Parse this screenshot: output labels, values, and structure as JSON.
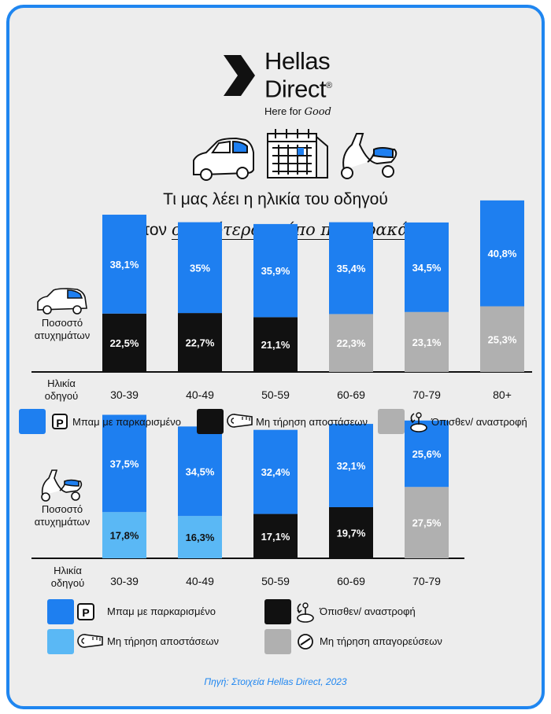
{
  "logo": {
    "line1": "Hellas",
    "line2": "Direct",
    "reg": "®",
    "tagline_plain": "Here for ",
    "tagline_script": "Good"
  },
  "title": {
    "line1": "Τι μας λέει η ηλικία του οδηγού",
    "line2_plain": "για τον ",
    "line2_script": "συχνότερο τρόπο που τρακάρει"
  },
  "colors": {
    "blue": "#1e7ff0",
    "light_blue": "#5ab8f5",
    "black": "#111111",
    "gray": "#b0b0b0",
    "accent": "#1f86f0"
  },
  "chart_data": [
    {
      "type": "bar",
      "vehicle": "car-icon",
      "ylabel": "Ποσοστό ατυχημάτων",
      "xlabel": "Ηλικία οδηγού",
      "categories": [
        "30-39",
        "40-49",
        "50-59",
        "60-69",
        "70-79",
        "80+"
      ],
      "series": [
        {
          "name": "Μπαμ με παρκαρισμένο",
          "color": "#1e7ff0",
          "values": [
            38.1,
            35,
            35.9,
            35.4,
            34.5,
            40.8
          ],
          "labels": [
            "38,1%",
            "35%",
            "35,9%",
            "35,4%",
            "34,5%",
            "40,8%"
          ],
          "position": "top"
        },
        {
          "name": "Μη τήρηση αποστάσεων",
          "color": "#111111",
          "values": [
            22.5,
            22.7,
            21.1,
            null,
            null,
            null
          ],
          "labels": [
            "22,5%",
            "22,7%",
            "21,1%",
            "",
            "",
            ""
          ],
          "position": "bottom"
        },
        {
          "name": "Όπισθεν/ αναστροφή",
          "color": "#b0b0b0",
          "values": [
            null,
            null,
            null,
            22.3,
            23.1,
            25.3
          ],
          "labels": [
            "",
            "",
            "",
            "22,3%",
            "23,1%",
            "25,3%"
          ],
          "position": "bottom"
        }
      ]
    },
    {
      "type": "bar",
      "vehicle": "scooter-icon",
      "ylabel": "Ποσοστό ατυχημάτων",
      "xlabel": "Ηλικία οδηγού",
      "categories": [
        "30-39",
        "40-49",
        "50-59",
        "60-69",
        "70-79"
      ],
      "series": [
        {
          "name": "Μπαμ με παρκαρισμένο",
          "color": "#1e7ff0",
          "values": [
            37.5,
            34.5,
            32.4,
            32.1,
            25.6
          ],
          "labels": [
            "37,5%",
            "34,5%",
            "32,4%",
            "32,1%",
            "25,6%"
          ]
        },
        {
          "name": "Μη τήρηση αποστάσεων",
          "color": "#5ab8f5",
          "values": [
            17.8,
            16.3,
            null,
            null,
            null
          ],
          "labels": [
            "17,8%",
            "16,3%",
            "",
            "",
            ""
          ]
        },
        {
          "name": "Όπισθεν/ αναστροφή",
          "color": "#111111",
          "values": [
            null,
            null,
            17.1,
            19.7,
            null
          ],
          "labels": [
            "",
            "",
            "17,1%",
            "19,7%",
            ""
          ]
        },
        {
          "name": "Μη τήρηση απαγορεύσεων",
          "color": "#b0b0b0",
          "values": [
            null,
            null,
            null,
            null,
            27.5
          ],
          "labels": [
            "",
            "",
            "",
            "",
            "27,5%"
          ]
        }
      ]
    }
  ],
  "legend1": [
    {
      "label": "Μπαμ με παρκαρισμένο",
      "color": "#1e7ff0",
      "icon": "parking-icon"
    },
    {
      "label": "Μη τήρηση αποστάσεων",
      "color": "#111111",
      "icon": "tape-measure-icon"
    },
    {
      "label": "Όπισθεν/ αναστροφή",
      "color": "#b0b0b0",
      "icon": "reverse-icon"
    }
  ],
  "legend2": [
    {
      "label": "Μπαμ με παρκαρισμένο",
      "color": "#1e7ff0",
      "icon": "parking-icon"
    },
    {
      "label": "Όπισθεν/ αναστροφή",
      "color": "#111111",
      "icon": "reverse-icon"
    },
    {
      "label": "Μη τήρηση αποστάσεων",
      "color": "#5ab8f5",
      "icon": "tape-measure-icon"
    },
    {
      "label": "Μη τήρηση απαγορεύσεων",
      "color": "#b0b0b0",
      "icon": "no-entry-icon"
    }
  ],
  "source": "Πηγή: Στοιχεία Hellas Direct, 2023"
}
